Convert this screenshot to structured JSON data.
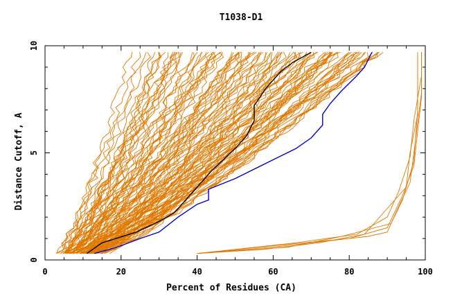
{
  "chart_data": {
    "type": "line",
    "title": "T1038-D1",
    "xlabel": "Percent of Residues (CA)",
    "ylabel": "Distance Cutoff, A",
    "xlim": [
      0,
      100
    ],
    "ylim": [
      0,
      10
    ],
    "x_ticks": [
      "0",
      "20",
      "40",
      "60",
      "80",
      "100"
    ],
    "y_ticks": [
      "0",
      "5",
      "10"
    ],
    "grid": false,
    "legend": "none",
    "colors": {
      "bundle": "#e07800",
      "highlight_black": "#000000",
      "highlight_blue": "#0000cc"
    },
    "bundle": {
      "description_free": true,
      "count": 110,
      "left_x_at_bottom": [
        4,
        15
      ],
      "left_x_at_top": [
        23,
        48
      ],
      "right_x_at_bottom": [
        7,
        22
      ],
      "right_x_at_top": [
        45,
        90
      ]
    },
    "series": [
      {
        "color": "#000000",
        "points": [
          [
            11,
            0.3
          ],
          [
            15,
            0.8
          ],
          [
            24,
            1.3
          ],
          [
            30,
            1.8
          ],
          [
            34,
            2.2
          ],
          [
            38,
            3.0
          ],
          [
            44,
            4.2
          ],
          [
            50,
            5.2
          ],
          [
            53,
            5.8
          ],
          [
            55,
            6.5
          ],
          [
            55,
            7.2
          ],
          [
            58,
            8.0
          ],
          [
            62,
            8.8
          ],
          [
            65,
            9.2
          ],
          [
            70,
            9.7
          ]
        ]
      },
      {
        "color": "#0000cc",
        "points": [
          [
            13,
            0.3
          ],
          [
            19,
            0.6
          ],
          [
            25,
            1.0
          ],
          [
            30,
            1.3
          ],
          [
            35,
            2.0
          ],
          [
            40,
            2.6
          ],
          [
            43,
            2.8
          ],
          [
            43,
            3.3
          ],
          [
            50,
            3.8
          ],
          [
            58,
            4.5
          ],
          [
            66,
            5.2
          ],
          [
            70,
            5.7
          ],
          [
            73,
            6.3
          ],
          [
            73,
            6.8
          ],
          [
            75,
            7.3
          ],
          [
            78,
            7.9
          ],
          [
            82,
            8.6
          ],
          [
            84,
            9.0
          ],
          [
            86,
            9.7
          ]
        ]
      },
      {
        "color": "#e07800",
        "points": [
          [
            40,
            0.3
          ],
          [
            60,
            0.6
          ],
          [
            75,
            0.9
          ],
          [
            85,
            1.1
          ],
          [
            90,
            1.3
          ],
          [
            93,
            2.5
          ],
          [
            96,
            3.6
          ],
          [
            97,
            5.0
          ],
          [
            98,
            6.4
          ],
          [
            99,
            7.8
          ],
          [
            99,
            9.7
          ]
        ]
      },
      {
        "color": "#e07800",
        "points": [
          [
            40,
            0.3
          ],
          [
            62,
            0.7
          ],
          [
            80,
            1.0
          ],
          [
            90,
            1.5
          ],
          [
            94,
            3.0
          ],
          [
            97,
            4.4
          ],
          [
            98,
            6.0
          ],
          [
            99,
            7.6
          ],
          [
            99,
            9.7
          ]
        ]
      },
      {
        "color": "#e07800",
        "points": [
          [
            40,
            0.3
          ],
          [
            58,
            0.5
          ],
          [
            72,
            0.8
          ],
          [
            84,
            1.2
          ],
          [
            89,
            2.2
          ],
          [
            95,
            3.4
          ],
          [
            96,
            5.0
          ],
          [
            98,
            6.8
          ],
          [
            98,
            9.7
          ]
        ]
      },
      {
        "color": "#e07800",
        "points": [
          [
            40,
            0.3
          ],
          [
            64,
            0.6
          ],
          [
            78,
            1.1
          ],
          [
            91,
            1.7
          ],
          [
            94,
            2.8
          ],
          [
            97,
            4.6
          ],
          [
            98,
            7.0
          ],
          [
            98,
            9.5
          ]
        ]
      },
      {
        "color": "#e07800",
        "points": [
          [
            40,
            0.3
          ],
          [
            66,
            0.8
          ],
          [
            82,
            1.2
          ],
          [
            90,
            2.0
          ],
          [
            93,
            3.2
          ],
          [
            96,
            4.8
          ],
          [
            97,
            6.5
          ],
          [
            99,
            8.6
          ],
          [
            99,
            9.7
          ]
        ]
      }
    ]
  }
}
